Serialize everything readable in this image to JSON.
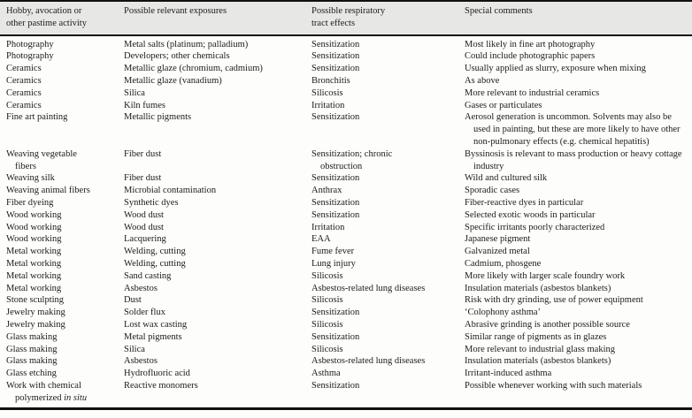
{
  "page": {
    "background_color": "#fdfdfb",
    "text_color": "#1b1b1b",
    "header_band_color": "#e7e7e6",
    "rule_color": "#111111"
  },
  "table": {
    "columns": [
      "Hobby, avocation or\nother pastime activity",
      "Possible relevant exposures",
      "Possible respiratory\ntract effects",
      "Special comments"
    ],
    "rows": [
      {
        "activity": "Photography",
        "exposure": "Metal salts (platinum; palladium)",
        "effect": "Sensitization",
        "comment": "Most likely in fine art photography"
      },
      {
        "activity": "Photography",
        "exposure": "Developers; other chemicals",
        "effect": "Sensitization",
        "comment": "Could include photographic papers"
      },
      {
        "activity": "Ceramics",
        "exposure": "Metallic glaze (chromium, cadmium)",
        "effect": "Sensitization",
        "comment": "Usually applied as slurry, exposure when mixing"
      },
      {
        "activity": "Ceramics",
        "exposure": "Metallic glaze (vanadium)",
        "effect": "Bronchitis",
        "comment": "As above"
      },
      {
        "activity": "Ceramics",
        "exposure": "Silica",
        "effect": "Silicosis",
        "comment": "More relevant to industrial ceramics"
      },
      {
        "activity": "Ceramics",
        "exposure": "Kiln fumes",
        "effect": "Irritation",
        "comment": "Gases or particulates"
      },
      {
        "activity": "Fine art painting",
        "exposure": "Metallic pigments",
        "effect": "Sensitization",
        "comment": "Aerosol generation is uncommon. Solvents may also be used in painting, but these are more likely to have other non-pulmonary effects (e.g. chemical hepatitis)"
      },
      {
        "activity": "Weaving vegetable\nfibers",
        "exposure": "Fiber dust",
        "effect": "Sensitization; chronic\nobstruction",
        "comment": "Byssinosis is relevant to mass production or heavy cottage industry"
      },
      {
        "activity": "Weaving silk",
        "exposure": "Fiber dust",
        "effect": "Sensitization",
        "comment": "Wild and cultured silk"
      },
      {
        "activity": "Weaving animal fibers",
        "exposure": "Microbial contamination",
        "effect": "Anthrax",
        "comment": "Sporadic cases"
      },
      {
        "activity": "Fiber dyeing",
        "exposure": "Synthetic dyes",
        "effect": "Sensitization",
        "comment": "Fiber-reactive dyes in particular"
      },
      {
        "activity": "Wood working",
        "exposure": "Wood dust",
        "effect": "Sensitization",
        "comment": "Selected exotic woods in particular"
      },
      {
        "activity": "Wood working",
        "exposure": "Wood dust",
        "effect": "Irritation",
        "comment": "Specific irritants poorly characterized"
      },
      {
        "activity": "Wood working",
        "exposure": "Lacquering",
        "effect": "EAA",
        "comment": "Japanese pigment"
      },
      {
        "activity": "Metal working",
        "exposure": "Welding, cutting",
        "effect": "Fume fever",
        "comment": "Galvanized metal"
      },
      {
        "activity": "Metal working",
        "exposure": "Welding, cutting",
        "effect": "Lung injury",
        "comment": "Cadmium, phosgene"
      },
      {
        "activity": "Metal working",
        "exposure": "Sand casting",
        "effect": "Silicosis",
        "comment": "More likely with larger scale foundry work"
      },
      {
        "activity": "Metal working",
        "exposure": "Asbestos",
        "effect": "Asbestos-related lung diseases",
        "comment": "Insulation materials (asbestos blankets)"
      },
      {
        "activity": "Stone sculpting",
        "exposure": "Dust",
        "effect": "Silicosis",
        "comment": "Risk with dry grinding, use of power equipment"
      },
      {
        "activity": "Jewelry making",
        "exposure": "Solder flux",
        "effect": "Sensitization",
        "comment": "‘Colophony asthma’"
      },
      {
        "activity": "Jewelry making",
        "exposure": "Lost wax casting",
        "effect": "Silicosis",
        "comment": "Abrasive grinding is another possible source"
      },
      {
        "activity": "Glass making",
        "exposure": "Metal pigments",
        "effect": "Sensitization",
        "comment": "Similar range of pigments as in glazes"
      },
      {
        "activity": "Glass making",
        "exposure": "Silica",
        "effect": "Silicosis",
        "comment": "More relevant to industrial glass making"
      },
      {
        "activity": "Glass making",
        "exposure": "Asbestos",
        "effect": "Asbestos-related lung diseases",
        "comment": "Insulation materials (asbestos blankets)"
      },
      {
        "activity": "Glass etching",
        "exposure": "Hydrofluoric acid",
        "effect": "Asthma",
        "comment": "Irritant-induced asthma"
      },
      {
        "activity": "Work with chemical\npolymerized",
        "activity_italic": "in situ",
        "exposure": "Reactive monomers",
        "effect": "Sensitization",
        "comment": "Possible whenever working with such materials"
      }
    ]
  }
}
